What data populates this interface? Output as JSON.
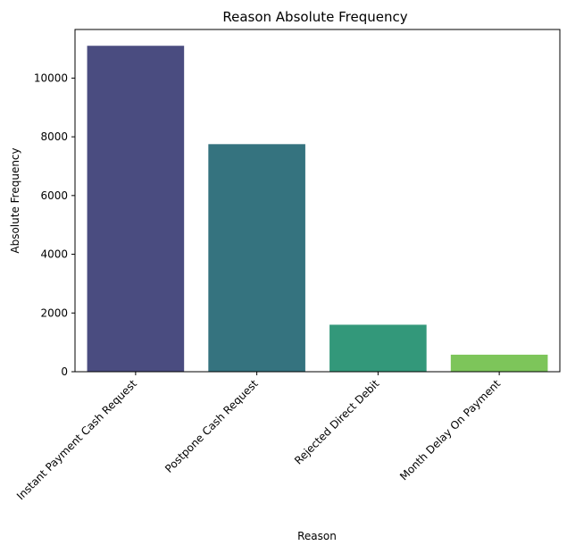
{
  "chart_data": {
    "type": "bar",
    "title": "Reason Absolute Frequency",
    "xlabel": "Reason",
    "ylabel": "Absolute Frequency",
    "categories": [
      "Instant Payment Cash Request",
      "Postpone Cash Request",
      "Rejected Direct Debit",
      "Month Delay On Payment"
    ],
    "values": [
      11100,
      7750,
      1600,
      580
    ],
    "colors": [
      "#4a4c80",
      "#35737f",
      "#33987a",
      "#7dc55a"
    ],
    "ylim": [
      0,
      11655
    ],
    "yticks": [
      0,
      2000,
      4000,
      6000,
      8000,
      10000
    ],
    "ytick_labels": [
      "0",
      "2000",
      "4000",
      "6000",
      "8000",
      "10000"
    ],
    "grid": false,
    "legend": "none"
  }
}
